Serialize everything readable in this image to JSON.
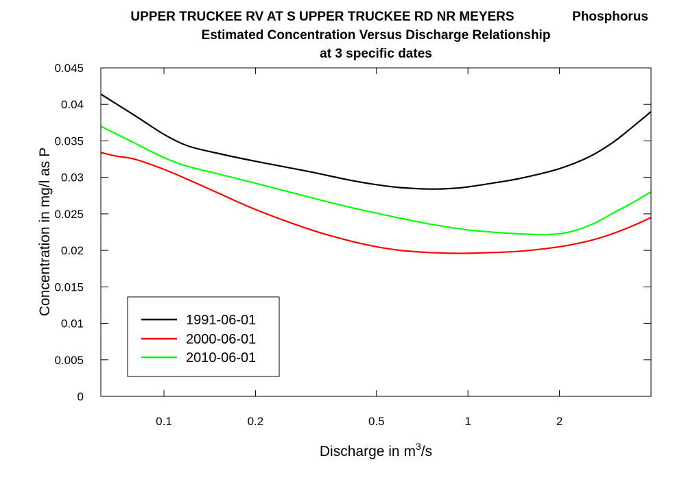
{
  "chart_data": {
    "type": "line",
    "title": "UPPER TRUCKEE RV AT S UPPER TRUCKEE RD NR MEYERS",
    "constituent": "Phosphorus",
    "subtitle": "Estimated Concentration Versus Discharge Relationship",
    "subtitle2": "at 3 specific dates",
    "xlabel": "Discharge in m",
    "xlabel_sup": "3",
    "xlabel_tail": "/s",
    "ylabel": "Concentration in mg/l as P",
    "x_scale": "log",
    "xlim": [
      0.062,
      4.0
    ],
    "ylim": [
      0,
      0.045
    ],
    "x_ticks": [
      {
        "value": 0.1,
        "label": "0.1"
      },
      {
        "value": 0.2,
        "label": "0.2"
      },
      {
        "value": 0.5,
        "label": "0.5"
      },
      {
        "value": 1,
        "label": "1"
      },
      {
        "value": 2,
        "label": "2"
      }
    ],
    "y_ticks": [
      {
        "value": 0,
        "label": "0"
      },
      {
        "value": 0.005,
        "label": "0.005"
      },
      {
        "value": 0.01,
        "label": "0.01"
      },
      {
        "value": 0.015,
        "label": "0.015"
      },
      {
        "value": 0.02,
        "label": "0.02"
      },
      {
        "value": 0.025,
        "label": "0.025"
      },
      {
        "value": 0.03,
        "label": "0.03"
      },
      {
        "value": 0.035,
        "label": "0.035"
      },
      {
        "value": 0.04,
        "label": "0.04"
      },
      {
        "value": 0.045,
        "label": "0.045"
      }
    ],
    "grid": false,
    "legend_position": "bottom-left",
    "series": [
      {
        "name": "1991-06-01",
        "color": "#000000",
        "x": [
          0.062,
          0.08,
          0.1,
          0.12,
          0.15,
          0.2,
          0.3,
          0.4,
          0.5,
          0.6,
          0.75,
          0.9,
          1.0,
          1.2,
          1.5,
          2.0,
          2.5,
          3.0,
          3.5,
          4.0
        ],
        "y": [
          0.0414,
          0.0385,
          0.0359,
          0.0343,
          0.0333,
          0.0322,
          0.0308,
          0.0297,
          0.029,
          0.0286,
          0.0284,
          0.0285,
          0.0287,
          0.0292,
          0.0299,
          0.0312,
          0.0328,
          0.0348,
          0.037,
          0.039
        ]
      },
      {
        "name": "2000-06-01",
        "color": "#ff0000",
        "x": [
          0.062,
          0.07,
          0.08,
          0.1,
          0.12,
          0.15,
          0.2,
          0.3,
          0.4,
          0.5,
          0.6,
          0.75,
          0.9,
          1.0,
          1.2,
          1.5,
          2.0,
          2.5,
          3.0,
          3.5,
          4.0
        ],
        "y": [
          0.0334,
          0.0329,
          0.0325,
          0.0311,
          0.0297,
          0.0279,
          0.0256,
          0.0229,
          0.0214,
          0.0205,
          0.02,
          0.0197,
          0.0196,
          0.0196,
          0.0197,
          0.0199,
          0.0205,
          0.0213,
          0.0223,
          0.0234,
          0.0245
        ]
      },
      {
        "name": "2010-06-01",
        "color": "#00ff00",
        "x": [
          0.062,
          0.08,
          0.1,
          0.12,
          0.15,
          0.2,
          0.3,
          0.4,
          0.5,
          0.6,
          0.75,
          1.0,
          1.3,
          1.6,
          1.9,
          2.2,
          2.6,
          3.0,
          3.5,
          4.0
        ],
        "y": [
          0.037,
          0.0347,
          0.0327,
          0.0315,
          0.0305,
          0.0292,
          0.0273,
          0.026,
          0.0251,
          0.0244,
          0.0236,
          0.0228,
          0.0224,
          0.0222,
          0.0222,
          0.0226,
          0.0237,
          0.0251,
          0.0266,
          0.028
        ]
      }
    ]
  }
}
